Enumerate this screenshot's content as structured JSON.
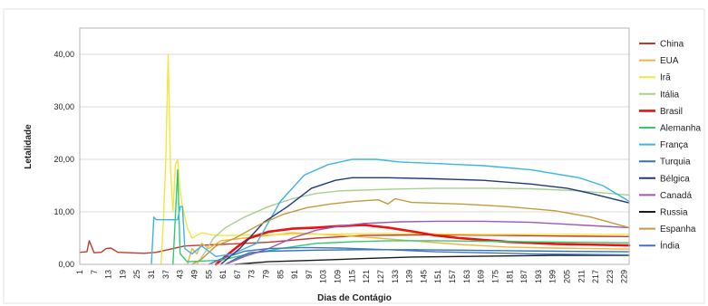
{
  "chart_data": {
    "type": "line",
    "title": "",
    "xlabel": "Dias de Contágio",
    "ylabel": "Letalidade",
    "ylim": [
      0,
      45
    ],
    "yticks": [
      "0,00",
      "10,00",
      "20,00",
      "30,00",
      "40,00"
    ],
    "ytick_values": [
      0,
      10,
      20,
      30,
      40
    ],
    "xlim": [
      1,
      231
    ],
    "xticks": [
      1,
      7,
      13,
      19,
      25,
      31,
      37,
      43,
      49,
      55,
      61,
      67,
      73,
      79,
      85,
      91,
      97,
      103,
      109,
      115,
      121,
      127,
      133,
      139,
      145,
      151,
      157,
      163,
      169,
      175,
      181,
      187,
      193,
      199,
      205,
      211,
      217,
      223,
      229
    ],
    "grid": "horizontal",
    "legend_position": "right",
    "series": [
      {
        "name": "China",
        "color": "#c0392b",
        "width": 1.4,
        "points": [
          [
            1,
            2.3
          ],
          [
            4,
            2.4
          ],
          [
            5,
            4.5
          ],
          [
            7,
            2.2
          ],
          [
            10,
            2.3
          ],
          [
            12,
            3.0
          ],
          [
            14,
            3.1
          ],
          [
            17,
            2.3
          ],
          [
            22,
            2.2
          ],
          [
            28,
            2.1
          ],
          [
            33,
            2.3
          ],
          [
            40,
            3.0
          ],
          [
            45,
            3.5
          ],
          [
            50,
            3.6
          ],
          [
            60,
            3.8
          ],
          [
            80,
            4.2
          ],
          [
            100,
            5.0
          ],
          [
            120,
            5.5
          ],
          [
            140,
            5.6
          ],
          [
            160,
            5.6
          ],
          [
            180,
            5.5
          ],
          [
            200,
            5.4
          ],
          [
            231,
            5.3
          ]
        ]
      },
      {
        "name": "EUA",
        "color": "#f0b43c",
        "width": 1.4,
        "points": [
          [
            46,
            0
          ],
          [
            48,
            3
          ],
          [
            50,
            2
          ],
          [
            52,
            4
          ],
          [
            55,
            3
          ],
          [
            60,
            4.5
          ],
          [
            70,
            5
          ],
          [
            80,
            5.5
          ],
          [
            90,
            6
          ],
          [
            100,
            5.8
          ],
          [
            110,
            5.5
          ],
          [
            120,
            5.2
          ],
          [
            140,
            4.5
          ],
          [
            160,
            3.8
          ],
          [
            180,
            3.3
          ],
          [
            200,
            3.1
          ],
          [
            231,
            2.9
          ]
        ]
      },
      {
        "name": "Irã",
        "color": "#f4e542",
        "width": 1.4,
        "points": [
          [
            35,
            0
          ],
          [
            36,
            8
          ],
          [
            37,
            20
          ],
          [
            38,
            40
          ],
          [
            39,
            18
          ],
          [
            40,
            10
          ],
          [
            41,
            19
          ],
          [
            42,
            20
          ],
          [
            43,
            14
          ],
          [
            44,
            11
          ],
          [
            46,
            7
          ],
          [
            48,
            5
          ],
          [
            52,
            6
          ],
          [
            58,
            5.5
          ],
          [
            65,
            5.5
          ],
          [
            75,
            5.6
          ],
          [
            90,
            5.7
          ],
          [
            110,
            5.8
          ],
          [
            130,
            5.9
          ],
          [
            150,
            5.8
          ],
          [
            170,
            5.7
          ],
          [
            190,
            5.7
          ],
          [
            210,
            5.7
          ],
          [
            231,
            5.7
          ]
        ]
      },
      {
        "name": "Itália",
        "color": "#a8d08d",
        "width": 1.4,
        "points": [
          [
            50,
            0
          ],
          [
            53,
            2
          ],
          [
            57,
            5
          ],
          [
            62,
            7
          ],
          [
            70,
            9
          ],
          [
            80,
            11
          ],
          [
            90,
            12.5
          ],
          [
            100,
            13.5
          ],
          [
            110,
            14
          ],
          [
            130,
            14.3
          ],
          [
            150,
            14.5
          ],
          [
            170,
            14.5
          ],
          [
            190,
            14.4
          ],
          [
            210,
            14.0
          ],
          [
            231,
            13.2
          ]
        ]
      },
      {
        "name": "Brasil",
        "color": "#ee1111",
        "width": 2.6,
        "points": [
          [
            58,
            0
          ],
          [
            62,
            1.5
          ],
          [
            66,
            3
          ],
          [
            72,
            5
          ],
          [
            80,
            6.2
          ],
          [
            90,
            6.8
          ],
          [
            100,
            7
          ],
          [
            110,
            7.3
          ],
          [
            120,
            7.5
          ],
          [
            130,
            7
          ],
          [
            140,
            6.3
          ],
          [
            150,
            5.5
          ],
          [
            160,
            5
          ],
          [
            180,
            4.3
          ],
          [
            200,
            3.9
          ],
          [
            231,
            3.6
          ]
        ]
      },
      {
        "name": "Alemanha",
        "color": "#2ecc71",
        "width": 1.4,
        "points": [
          [
            40,
            0
          ],
          [
            42,
            18
          ],
          [
            43,
            2
          ],
          [
            46,
            0.5
          ],
          [
            60,
            0.8
          ],
          [
            70,
            1.8
          ],
          [
            85,
            3
          ],
          [
            100,
            4
          ],
          [
            115,
            4.3
          ],
          [
            130,
            4.5
          ],
          [
            150,
            4.5
          ],
          [
            170,
            4.4
          ],
          [
            190,
            4.3
          ],
          [
            210,
            4.2
          ],
          [
            231,
            4.1
          ]
        ]
      },
      {
        "name": "França",
        "color": "#3ab5e6",
        "width": 1.4,
        "points": [
          [
            31,
            0
          ],
          [
            32,
            9
          ],
          [
            33,
            8.5
          ],
          [
            42,
            8.5
          ],
          [
            43,
            11
          ],
          [
            44,
            11
          ],
          [
            45,
            3
          ],
          [
            48,
            2
          ],
          [
            52,
            3.5
          ],
          [
            58,
            1.5
          ],
          [
            65,
            2
          ],
          [
            75,
            4
          ],
          [
            85,
            12
          ],
          [
            95,
            17
          ],
          [
            105,
            19
          ],
          [
            115,
            20
          ],
          [
            125,
            20
          ],
          [
            135,
            19.5
          ],
          [
            150,
            19.2
          ],
          [
            170,
            18.8
          ],
          [
            190,
            18
          ],
          [
            210,
            16.5
          ],
          [
            220,
            15
          ],
          [
            231,
            12
          ]
        ]
      },
      {
        "name": "Turquia",
        "color": "#2e75b6",
        "width": 1.4,
        "points": [
          [
            62,
            0
          ],
          [
            66,
            1
          ],
          [
            72,
            2.2
          ],
          [
            80,
            2.5
          ],
          [
            100,
            2.7
          ],
          [
            120,
            2.8
          ],
          [
            140,
            2.8
          ],
          [
            160,
            2.7
          ],
          [
            180,
            2.6
          ],
          [
            200,
            2.5
          ],
          [
            231,
            2.4
          ]
        ]
      },
      {
        "name": "Bélgica",
        "color": "#1f3a7a",
        "width": 1.4,
        "points": [
          [
            60,
            0
          ],
          [
            68,
            3
          ],
          [
            78,
            8
          ],
          [
            88,
            11
          ],
          [
            98,
            14.5
          ],
          [
            108,
            16
          ],
          [
            115,
            16.5
          ],
          [
            130,
            16.5
          ],
          [
            150,
            16.3
          ],
          [
            170,
            16
          ],
          [
            190,
            15.3
          ],
          [
            205,
            14.5
          ],
          [
            215,
            13.5
          ],
          [
            231,
            11.7
          ]
        ]
      },
      {
        "name": "Canadá",
        "color": "#9b59b6",
        "width": 1.4,
        "points": [
          [
            62,
            0
          ],
          [
            70,
            1.5
          ],
          [
            80,
            3
          ],
          [
            90,
            5
          ],
          [
            100,
            6.5
          ],
          [
            110,
            7.3
          ],
          [
            120,
            7.8
          ],
          [
            135,
            8.1
          ],
          [
            150,
            8.2
          ],
          [
            170,
            8.2
          ],
          [
            190,
            8.0
          ],
          [
            210,
            7.5
          ],
          [
            231,
            7.0
          ]
        ]
      },
      {
        "name": "Russia",
        "color": "#1a1a1a",
        "width": 1.4,
        "points": [
          [
            66,
            0
          ],
          [
            80,
            0.5
          ],
          [
            100,
            0.8
          ],
          [
            120,
            1.1
          ],
          [
            140,
            1.4
          ],
          [
            160,
            1.5
          ],
          [
            180,
            1.6
          ],
          [
            200,
            1.7
          ],
          [
            231,
            1.7
          ]
        ]
      },
      {
        "name": "Espanha",
        "color": "#c59a3a",
        "width": 1.4,
        "points": [
          [
            48,
            0
          ],
          [
            52,
            1
          ],
          [
            58,
            3.5
          ],
          [
            66,
            5
          ],
          [
            76,
            7.5
          ],
          [
            86,
            9.5
          ],
          [
            96,
            10.8
          ],
          [
            106,
            11.5
          ],
          [
            116,
            12
          ],
          [
            126,
            12.3
          ],
          [
            130,
            11.5
          ],
          [
            133,
            12.5
          ],
          [
            140,
            11.8
          ],
          [
            160,
            11.5
          ],
          [
            180,
            11
          ],
          [
            200,
            10.2
          ],
          [
            215,
            9
          ],
          [
            231,
            7
          ]
        ]
      },
      {
        "name": "Índia",
        "color": "#4472c4",
        "width": 1.4,
        "points": [
          [
            55,
            0
          ],
          [
            60,
            1
          ],
          [
            70,
            2.5
          ],
          [
            80,
            3
          ],
          [
            95,
            3.2
          ],
          [
            110,
            3.1
          ],
          [
            130,
            2.8
          ],
          [
            150,
            2.4
          ],
          [
            170,
            2.2
          ],
          [
            190,
            2.0
          ],
          [
            210,
            1.9
          ],
          [
            231,
            1.8
          ]
        ]
      }
    ]
  }
}
